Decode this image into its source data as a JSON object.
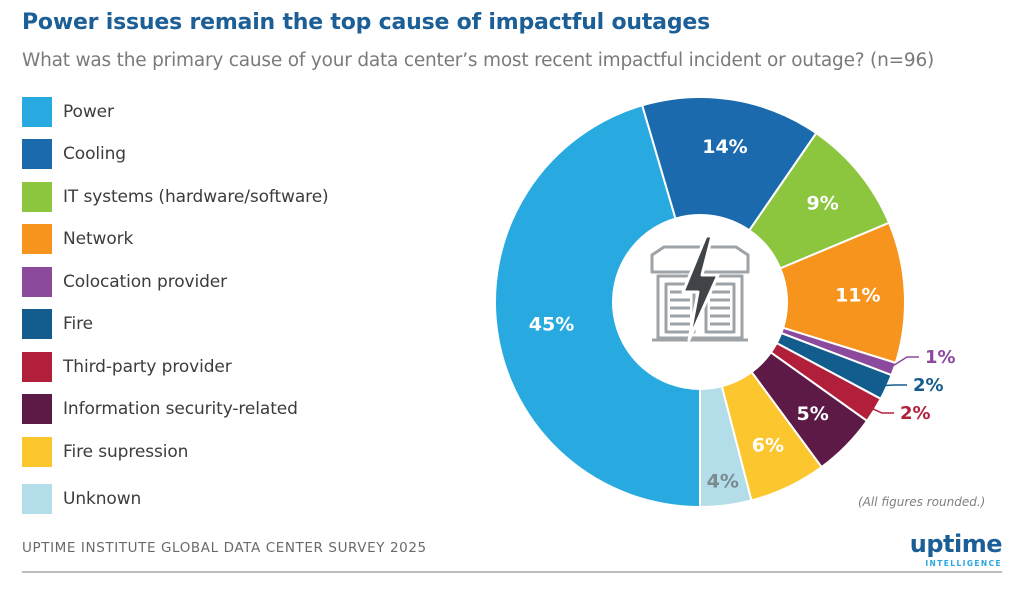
{
  "title": "Power issues remain the top cause of impactful outages",
  "subtitle": "What was the primary cause of your data center’s most recent impactful incident or outage? (n=96)",
  "note": "(All figures rounded.)",
  "footer": "UPTIME INSTITUTE GLOBAL DATA CENTER SURVEY 2025",
  "logo": {
    "word": "uptime",
    "sub": "INTELLIGENCE"
  },
  "center_icon": "data-center-lightning-icon",
  "chart_data": {
    "type": "pie",
    "variant": "donut",
    "title": "Power issues remain the top cause of impactful outages",
    "subtitle": "What was the primary cause of your data center’s most recent impactful incident or outage? (n=96)",
    "legend_position": "left",
    "categories": [
      "Power",
      "Cooling",
      "IT systems (hardware/software)",
      "Network",
      "Colocation provider",
      "Fire",
      "Third-party provider",
      "Information security-related",
      "Fire supression",
      "Unknown"
    ],
    "values": [
      45,
      14,
      9,
      11,
      1,
      2,
      2,
      5,
      6,
      4
    ],
    "labels": [
      "45%",
      "14%",
      "9%",
      "11%",
      "1%",
      "2%",
      "2%",
      "5%",
      "6%",
      "4%"
    ],
    "colors": [
      "#28aae1",
      "#1b6aae",
      "#8cc63f",
      "#f7941d",
      "#8b4a9c",
      "#135c8e",
      "#b21f3b",
      "#5e1a47",
      "#fcc72e",
      "#b3dde8"
    ],
    "label_colors": [
      "#ffffff",
      "#ffffff",
      "#ffffff",
      "#ffffff",
      "#8b4a9c",
      "#135c8e",
      "#b21f3b",
      "#ffffff",
      "#ffffff",
      "#7a8a90"
    ],
    "slice_order": [
      "Unknown",
      "Power",
      "Cooling",
      "IT systems (hardware/software)",
      "Network",
      "Colocation provider",
      "Fire",
      "Third-party provider",
      "Information security-related",
      "Fire supression"
    ]
  }
}
